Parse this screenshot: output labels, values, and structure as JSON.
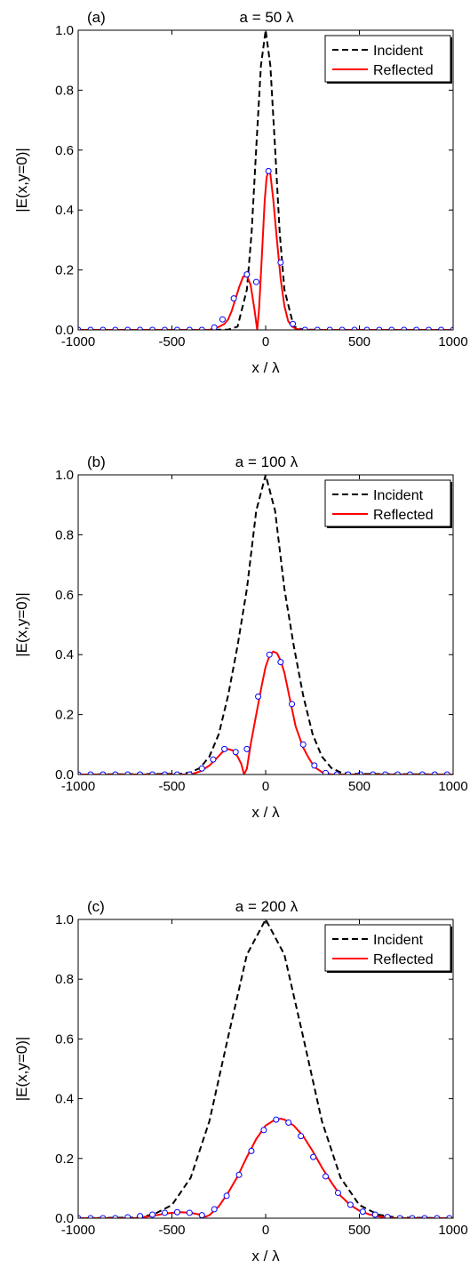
{
  "chart_data": [
    {
      "type": "line",
      "panel_label": "(a)",
      "title": "a = 50 λ",
      "xlabel": "x / λ",
      "ylabel": "|E(x,y=0)|",
      "xlim": [
        -1000,
        1000
      ],
      "ylim": [
        0,
        1.0
      ],
      "xticks": [
        "-1000",
        "-500",
        "0",
        "500",
        "1000"
      ],
      "yticks": [
        "0.0",
        "0.2",
        "0.4",
        "0.6",
        "0.8",
        "1.0"
      ],
      "legend": "top-right",
      "grid": false,
      "series": [
        {
          "name": "Incident",
          "style": "dashed",
          "color": "#000000",
          "x": [
            -1000,
            -300,
            -200,
            -150,
            -100,
            -75,
            -50,
            -25,
            0,
            25,
            50,
            75,
            100,
            150,
            200,
            300,
            1000
          ],
          "y": [
            0,
            0,
            0.001,
            0.011,
            0.135,
            0.325,
            0.607,
            0.882,
            1.0,
            0.882,
            0.607,
            0.325,
            0.135,
            0.011,
            0.001,
            0,
            0
          ]
        },
        {
          "name": "Reflected",
          "style": "solid",
          "color": "#ff0000",
          "x": [
            -1000,
            -300,
            -250,
            -220,
            -200,
            -180,
            -160,
            -140,
            -120,
            -100,
            -80,
            -60,
            -45,
            -35,
            -20,
            -5,
            5,
            15,
            25,
            40,
            60,
            80,
            100,
            120,
            140,
            160,
            200,
            300,
            1000
          ],
          "y": [
            0,
            0,
            0.01,
            0.02,
            0.035,
            0.065,
            0.105,
            0.145,
            0.178,
            0.18,
            0.15,
            0.07,
            0,
            0.07,
            0.25,
            0.43,
            0.51,
            0.53,
            0.52,
            0.44,
            0.3,
            0.17,
            0.08,
            0.03,
            0.012,
            0.004,
            0,
            0,
            0
          ]
        },
        {
          "name": "markers",
          "style": "markers",
          "color": "#0000ff",
          "x": [
            -1000,
            -934,
            -868,
            -802,
            -736,
            -670,
            -604,
            -538,
            -472,
            -406,
            -340,
            -274,
            -230,
            -170,
            -100,
            -50,
            15,
            80,
            145,
            210,
            276,
            342,
            408,
            474,
            540,
            606,
            672,
            738,
            804,
            870,
            936,
            1000
          ],
          "y": [
            0,
            0,
            0,
            0,
            0,
            0,
            0,
            0,
            0,
            0,
            0,
            0.008,
            0.035,
            0.105,
            0.185,
            0.16,
            0.53,
            0.225,
            0.02,
            0,
            0,
            0,
            0,
            0,
            0,
            0,
            0,
            0,
            0,
            0,
            0,
            0
          ]
        }
      ]
    },
    {
      "type": "line",
      "panel_label": "(b)",
      "title": "a = 100 λ",
      "xlabel": "x / λ",
      "ylabel": "|E(x,y=0)|",
      "xlim": [
        -1000,
        1000
      ],
      "ylim": [
        0,
        1.0
      ],
      "xticks": [
        "-1000",
        "-500",
        "0",
        "500",
        "1000"
      ],
      "yticks": [
        "0.0",
        "0.2",
        "0.4",
        "0.6",
        "0.8",
        "1.0"
      ],
      "legend": "top-right",
      "grid": false,
      "series": [
        {
          "name": "Incident",
          "style": "dashed",
          "color": "#000000",
          "x": [
            -1000,
            -450,
            -400,
            -350,
            -300,
            -250,
            -200,
            -150,
            -100,
            -50,
            0,
            50,
            100,
            150,
            200,
            250,
            300,
            350,
            400,
            450,
            1000
          ],
          "y": [
            0,
            0.002,
            0.007,
            0.022,
            0.06,
            0.135,
            0.264,
            0.43,
            0.62,
            0.88,
            1.0,
            0.88,
            0.62,
            0.43,
            0.264,
            0.135,
            0.06,
            0.022,
            0.007,
            0.002,
            0
          ]
        },
        {
          "name": "Reflected",
          "style": "solid",
          "color": "#ff0000",
          "x": [
            -1000,
            -400,
            -350,
            -300,
            -260,
            -230,
            -200,
            -175,
            -150,
            -130,
            -115,
            -100,
            -80,
            -50,
            -20,
            0,
            20,
            40,
            60,
            80,
            100,
            130,
            160,
            200,
            230,
            260,
            300,
            350,
            1000
          ],
          "y": [
            0,
            0,
            0.01,
            0.03,
            0.055,
            0.075,
            0.085,
            0.08,
            0.06,
            0.035,
            0,
            0.02,
            0.1,
            0.2,
            0.3,
            0.36,
            0.395,
            0.41,
            0.405,
            0.38,
            0.34,
            0.25,
            0.16,
            0.09,
            0.055,
            0.025,
            0.008,
            0,
            0
          ]
        },
        {
          "name": "markers",
          "style": "markers",
          "color": "#0000ff",
          "x": [
            -1000,
            -934,
            -868,
            -802,
            -736,
            -670,
            -604,
            -538,
            -472,
            -406,
            -340,
            -280,
            -220,
            -160,
            -100,
            -40,
            20,
            80,
            140,
            200,
            260,
            320,
            380,
            440,
            506,
            572,
            638,
            704,
            770,
            836,
            902,
            968
          ],
          "y": [
            0,
            0,
            0,
            0,
            0,
            0,
            0,
            0,
            0,
            0,
            0.02,
            0.05,
            0.085,
            0.075,
            0.085,
            0.26,
            0.4,
            0.375,
            0.235,
            0.1,
            0.03,
            0.005,
            0,
            0,
            0,
            0,
            0,
            0,
            0,
            0,
            0,
            0
          ]
        }
      ]
    },
    {
      "type": "line",
      "panel_label": "(c)",
      "title": "a = 200 λ",
      "xlabel": "x / λ",
      "ylabel": "|E(x,y=0)|",
      "xlim": [
        -1000,
        1000
      ],
      "ylim": [
        0,
        1.0
      ],
      "xticks": [
        "-1000",
        "-500",
        "0",
        "500",
        "1000"
      ],
      "yticks": [
        "0.0",
        "0.2",
        "0.4",
        "0.6",
        "0.8",
        "1.0"
      ],
      "legend": "top-right",
      "grid": false,
      "series": [
        {
          "name": "Incident",
          "style": "dashed",
          "color": "#000000",
          "x": [
            -1000,
            -700,
            -600,
            -500,
            -400,
            -300,
            -200,
            -100,
            0,
            100,
            200,
            300,
            400,
            500,
            600,
            700,
            1000
          ],
          "y": [
            0,
            0.002,
            0.012,
            0.044,
            0.135,
            0.325,
            0.607,
            0.882,
            1.0,
            0.882,
            0.607,
            0.325,
            0.135,
            0.044,
            0.012,
            0.002,
            0
          ]
        },
        {
          "name": "Reflected",
          "style": "solid",
          "color": "#ff0000",
          "x": [
            -1000,
            -700,
            -600,
            -550,
            -500,
            -450,
            -400,
            -350,
            -320,
            -300,
            -250,
            -200,
            -150,
            -100,
            -50,
            0,
            50,
            80,
            100,
            150,
            200,
            250,
            300,
            350,
            400,
            450,
            500,
            550,
            600,
            650,
            700,
            1000
          ],
          "y": [
            0,
            0,
            0.008,
            0.014,
            0.018,
            0.02,
            0.018,
            0.012,
            0.005,
            0.01,
            0.04,
            0.085,
            0.14,
            0.205,
            0.265,
            0.31,
            0.33,
            0.333,
            0.33,
            0.31,
            0.275,
            0.225,
            0.17,
            0.12,
            0.075,
            0.045,
            0.025,
            0.013,
            0.006,
            0.002,
            0,
            0
          ]
        },
        {
          "name": "markers",
          "style": "markers",
          "color": "#0000ff",
          "x": [
            -1000,
            -934,
            -868,
            -802,
            -736,
            -670,
            -604,
            -538,
            -472,
            -406,
            -340,
            -274,
            -208,
            -142,
            -76,
            -10,
            56,
            122,
            188,
            254,
            320,
            386,
            452,
            518,
            584,
            650,
            716,
            782,
            848,
            914,
            980
          ],
          "y": [
            0,
            0,
            0,
            0,
            0.003,
            0.007,
            0.012,
            0.018,
            0.02,
            0.018,
            0.01,
            0.03,
            0.075,
            0.145,
            0.225,
            0.295,
            0.33,
            0.32,
            0.275,
            0.205,
            0.14,
            0.085,
            0.045,
            0.022,
            0.012,
            0.004,
            0,
            0,
            0,
            0,
            0
          ]
        }
      ]
    }
  ]
}
